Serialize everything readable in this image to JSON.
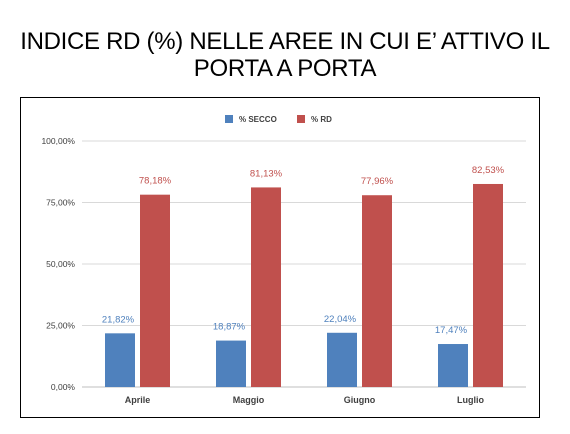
{
  "title_line1": "INDICE RD (%) NELLE AREE IN CUI E’ ATTIVO IL",
  "title_line2": "PORTA A PORTA",
  "chart_data": {
    "type": "bar",
    "title": "",
    "xlabel": "",
    "ylabel": "",
    "categories": [
      "Aprile",
      "Maggio",
      "Giugno",
      "Luglio"
    ],
    "series": [
      {
        "name": "% SECCO",
        "color": "#4f81bd",
        "values": [
          21.82,
          18.87,
          22.04,
          17.47
        ],
        "labels": [
          "21,82%",
          "18,87%",
          "22,04%",
          "17,47%"
        ]
      },
      {
        "name": "% RD",
        "color": "#c0504d",
        "values": [
          78.18,
          81.13,
          77.96,
          82.53
        ],
        "labels": [
          "78,18%",
          "81,13%",
          "77,96%",
          "82,53%"
        ]
      }
    ],
    "ylim": [
      0,
      100
    ],
    "yticks": [
      0,
      25,
      50,
      75,
      100
    ],
    "ytick_labels": [
      "0,00%",
      "25,00%",
      "50,00%",
      "75,00%",
      "100,00%"
    ],
    "legend_position": "top-center",
    "grid": true
  }
}
